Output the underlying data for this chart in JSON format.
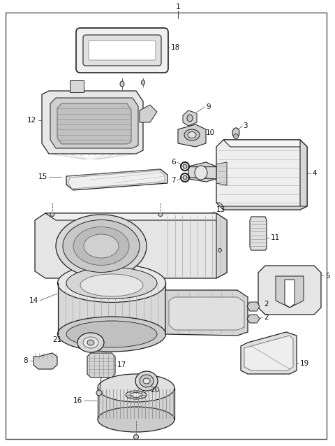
{
  "bg_color": "#ffffff",
  "border_color": "#333333",
  "fig_width": 4.8,
  "fig_height": 6.38,
  "dpi": 100,
  "label_fontsize": 7.5,
  "label_color": "#111111",
  "ec": "#222222",
  "lw_main": 0.9
}
